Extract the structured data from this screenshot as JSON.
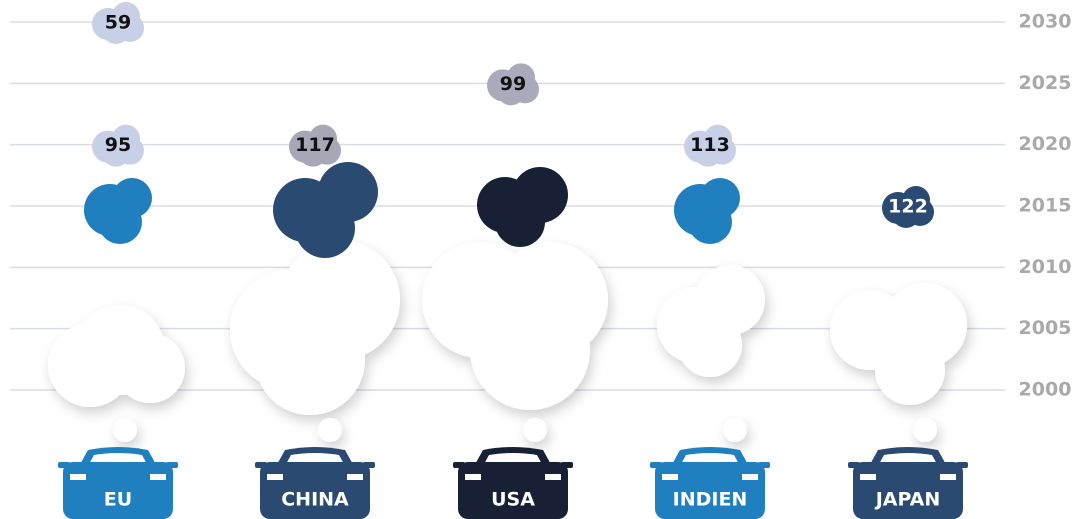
{
  "chart_data": {
    "type": "cloud",
    "categories": [
      "EU",
      "CHINA",
      "USA",
      "INDIEN",
      "JAPAN"
    ],
    "category_colors": [
      "#1f7fbf",
      "#2a4a72",
      "#172035",
      "#1f7fbf",
      "#2a4a72"
    ],
    "ylim": [
      2000,
      2030
    ],
    "yticks": [
      2000,
      2005,
      2010,
      2015,
      2020,
      2025,
      2030
    ],
    "grid": true,
    "points": [
      {
        "category": "EU",
        "year": 2030,
        "value": 59,
        "color": "#c8d0e8"
      },
      {
        "category": "EU",
        "year": 2020,
        "value": 95,
        "color": "#c8d0e8"
      },
      {
        "category": "CHINA",
        "year": 2020,
        "value": 117,
        "color": "#a6a8b8"
      },
      {
        "category": "USA",
        "year": 2025,
        "value": 99,
        "color": "#a9aabb"
      },
      {
        "category": "INDIEN",
        "year": 2020,
        "value": 113,
        "color": "#c8d0e8"
      },
      {
        "category": "JAPAN",
        "year": 2015,
        "value": 122,
        "color": "#2a4a72"
      }
    ]
  }
}
